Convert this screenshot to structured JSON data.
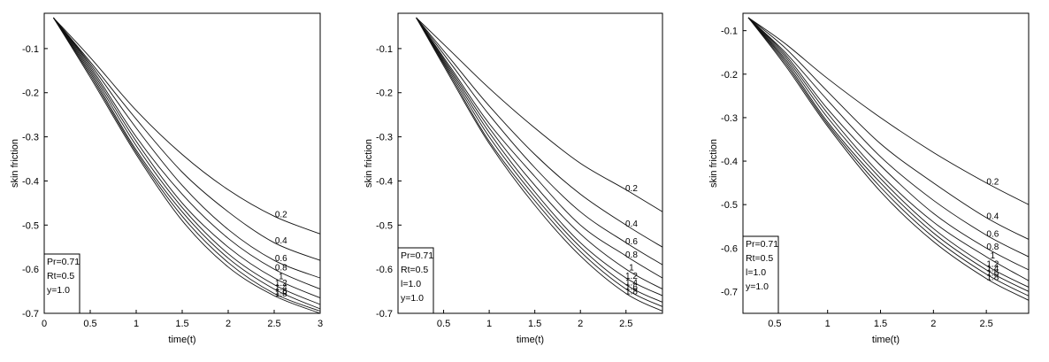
{
  "chart_data": [
    {
      "type": "line",
      "xlabel": "time(t)",
      "ylabel": "skin friction",
      "xlim": [
        0,
        3
      ],
      "ylim": [
        -0.7,
        -0.02
      ],
      "xticks": [
        "0",
        "0.5",
        "1",
        "1.5",
        "2",
        "2.5",
        "3"
      ],
      "yticks": [
        "-0.1",
        "-0.2",
        "-0.3",
        "-0.4",
        "-0.5",
        "-0.6",
        "-0.7"
      ],
      "legend": [
        "Pr=0.71",
        "Rt=0.5",
        "y=1.0"
      ],
      "legend_position": "bottom-left",
      "series": [
        {
          "name": "0.2",
          "x": [
            0.1,
            0.5,
            1.0,
            1.5,
            2.0,
            2.5,
            3.0
          ],
          "y": [
            -0.03,
            -0.12,
            -0.24,
            -0.34,
            -0.42,
            -0.48,
            -0.52
          ]
        },
        {
          "name": "0.4",
          "x": [
            0.1,
            0.5,
            1.0,
            1.5,
            2.0,
            2.5,
            3.0
          ],
          "y": [
            -0.03,
            -0.13,
            -0.26,
            -0.38,
            -0.47,
            -0.54,
            -0.58
          ]
        },
        {
          "name": "0.6",
          "x": [
            0.1,
            0.5,
            1.0,
            1.5,
            2.0,
            2.5,
            3.0
          ],
          "y": [
            -0.03,
            -0.135,
            -0.28,
            -0.41,
            -0.51,
            -0.58,
            -0.62
          ]
        },
        {
          "name": "0.8",
          "x": [
            0.1,
            0.5,
            1.0,
            1.5,
            2.0,
            2.5,
            3.0
          ],
          "y": [
            -0.03,
            -0.14,
            -0.3,
            -0.43,
            -0.53,
            -0.6,
            -0.645
          ]
        },
        {
          "name": "1",
          "x": [
            0.1,
            0.5,
            1.0,
            1.5,
            2.0,
            2.5,
            3.0
          ],
          "y": [
            -0.03,
            -0.145,
            -0.31,
            -0.45,
            -0.55,
            -0.62,
            -0.665
          ]
        },
        {
          "name": "1.2",
          "x": [
            0.1,
            0.5,
            1.0,
            1.5,
            2.0,
            2.5,
            3.0
          ],
          "y": [
            -0.03,
            -0.15,
            -0.32,
            -0.46,
            -0.565,
            -0.635,
            -0.68
          ]
        },
        {
          "name": "1.4",
          "x": [
            0.1,
            0.5,
            1.0,
            1.5,
            2.0,
            2.5,
            3.0
          ],
          "y": [
            -0.03,
            -0.155,
            -0.33,
            -0.47,
            -0.575,
            -0.645,
            -0.69
          ]
        },
        {
          "name": "1.6",
          "x": [
            0.1,
            0.5,
            1.0,
            1.5,
            2.0,
            2.5,
            3.0
          ],
          "y": [
            -0.03,
            -0.16,
            -0.335,
            -0.48,
            -0.585,
            -0.655,
            -0.695
          ]
        },
        {
          "name": "1.8",
          "x": [
            0.1,
            0.5,
            1.0,
            1.5,
            2.0,
            2.5,
            3.0
          ],
          "y": [
            -0.03,
            -0.165,
            -0.34,
            -0.49,
            -0.595,
            -0.66,
            -0.7
          ]
        }
      ]
    },
    {
      "type": "line",
      "xlabel": "time(t)",
      "ylabel": "skin friction",
      "xlim": [
        0,
        2.9
      ],
      "ylim": [
        -0.7,
        -0.02
      ],
      "xticks": [
        "0.5",
        "1",
        "1.5",
        "2",
        "2.5"
      ],
      "yticks": [
        "-0.1",
        "-0.2",
        "-0.3",
        "-0.4",
        "-0.5",
        "-0.6",
        "-0.7"
      ],
      "legend": [
        "Pr=0.71",
        "Rt=0.5",
        "l=1.0",
        "y=1.0"
      ],
      "legend_position": "bottom-left",
      "series": [
        {
          "name": "0.2",
          "x": [
            0.2,
            0.6,
            1.0,
            1.5,
            2.0,
            2.5,
            2.9
          ],
          "y": [
            -0.03,
            -0.11,
            -0.19,
            -0.28,
            -0.36,
            -0.42,
            -0.47
          ]
        },
        {
          "name": "0.4",
          "x": [
            0.2,
            0.6,
            1.0,
            1.5,
            2.0,
            2.5,
            2.9
          ],
          "y": [
            -0.03,
            -0.13,
            -0.23,
            -0.34,
            -0.43,
            -0.5,
            -0.55
          ]
        },
        {
          "name": "0.6",
          "x": [
            0.2,
            0.6,
            1.0,
            1.5,
            2.0,
            2.5,
            2.9
          ],
          "y": [
            -0.03,
            -0.14,
            -0.25,
            -0.37,
            -0.47,
            -0.54,
            -0.59
          ]
        },
        {
          "name": "0.8",
          "x": [
            0.2,
            0.6,
            1.0,
            1.5,
            2.0,
            2.5,
            2.9
          ],
          "y": [
            -0.03,
            -0.15,
            -0.27,
            -0.39,
            -0.5,
            -0.57,
            -0.62
          ]
        },
        {
          "name": "1",
          "x": [
            0.2,
            0.6,
            1.0,
            1.5,
            2.0,
            2.5,
            2.9
          ],
          "y": [
            -0.03,
            -0.155,
            -0.28,
            -0.41,
            -0.52,
            -0.6,
            -0.645
          ]
        },
        {
          "name": "1.2",
          "x": [
            0.2,
            0.6,
            1.0,
            1.5,
            2.0,
            2.5,
            2.9
          ],
          "y": [
            -0.03,
            -0.16,
            -0.29,
            -0.425,
            -0.54,
            -0.62,
            -0.66
          ]
        },
        {
          "name": "1.4",
          "x": [
            0.2,
            0.6,
            1.0,
            1.5,
            2.0,
            2.5,
            2.9
          ],
          "y": [
            -0.03,
            -0.165,
            -0.3,
            -0.435,
            -0.55,
            -0.635,
            -0.675
          ]
        },
        {
          "name": "1.6",
          "x": [
            0.2,
            0.6,
            1.0,
            1.5,
            2.0,
            2.5,
            2.9
          ],
          "y": [
            -0.03,
            -0.17,
            -0.31,
            -0.445,
            -0.56,
            -0.645,
            -0.685
          ]
        },
        {
          "name": "1.8",
          "x": [
            0.2,
            0.6,
            1.0,
            1.5,
            2.0,
            2.5,
            2.9
          ],
          "y": [
            -0.03,
            -0.175,
            -0.315,
            -0.455,
            -0.57,
            -0.655,
            -0.695
          ]
        }
      ]
    },
    {
      "type": "line",
      "xlabel": "time(t)",
      "ylabel": "skin friction",
      "xlim": [
        0.2,
        2.9
      ],
      "ylim": [
        -0.75,
        -0.06
      ],
      "xticks": [
        "0.5",
        "1",
        "1.5",
        "2",
        "2.5"
      ],
      "yticks": [
        "-0.1",
        "-0.2",
        "-0.3",
        "-0.4",
        "-0.5",
        "-0.6",
        "-0.7"
      ],
      "legend": [
        "Pr=0.71",
        "Rt=0.5",
        "l=1.0",
        "y=1.0"
      ],
      "legend_position": "bottom-left",
      "series": [
        {
          "name": "0.2",
          "x": [
            0.25,
            0.6,
            1.0,
            1.5,
            2.0,
            2.5,
            2.9
          ],
          "y": [
            -0.07,
            -0.13,
            -0.21,
            -0.3,
            -0.38,
            -0.45,
            -0.5
          ]
        },
        {
          "name": "0.4",
          "x": [
            0.25,
            0.6,
            1.0,
            1.5,
            2.0,
            2.5,
            2.9
          ],
          "y": [
            -0.07,
            -0.14,
            -0.24,
            -0.36,
            -0.45,
            -0.53,
            -0.58
          ]
        },
        {
          "name": "0.6",
          "x": [
            0.25,
            0.6,
            1.0,
            1.5,
            2.0,
            2.5,
            2.9
          ],
          "y": [
            -0.07,
            -0.15,
            -0.26,
            -0.39,
            -0.49,
            -0.57,
            -0.62
          ]
        },
        {
          "name": "0.8",
          "x": [
            0.25,
            0.6,
            1.0,
            1.5,
            2.0,
            2.5,
            2.9
          ],
          "y": [
            -0.07,
            -0.155,
            -0.28,
            -0.41,
            -0.52,
            -0.6,
            -0.65
          ]
        },
        {
          "name": "1",
          "x": [
            0.25,
            0.6,
            1.0,
            1.5,
            2.0,
            2.5,
            2.9
          ],
          "y": [
            -0.07,
            -0.16,
            -0.29,
            -0.43,
            -0.54,
            -0.62,
            -0.675
          ]
        },
        {
          "name": "1.2",
          "x": [
            0.25,
            0.6,
            1.0,
            1.5,
            2.0,
            2.5,
            2.9
          ],
          "y": [
            -0.07,
            -0.165,
            -0.3,
            -0.44,
            -0.555,
            -0.64,
            -0.69
          ]
        },
        {
          "name": "1.4",
          "x": [
            0.25,
            0.6,
            1.0,
            1.5,
            2.0,
            2.5,
            2.9
          ],
          "y": [
            -0.07,
            -0.17,
            -0.31,
            -0.45,
            -0.565,
            -0.65,
            -0.7
          ]
        },
        {
          "name": "1.6",
          "x": [
            0.25,
            0.6,
            1.0,
            1.5,
            2.0,
            2.5,
            2.9
          ],
          "y": [
            -0.07,
            -0.175,
            -0.315,
            -0.46,
            -0.575,
            -0.66,
            -0.71
          ]
        },
        {
          "name": "1.8",
          "x": [
            0.25,
            0.6,
            1.0,
            1.5,
            2.0,
            2.5,
            2.9
          ],
          "y": [
            -0.07,
            -0.18,
            -0.32,
            -0.47,
            -0.585,
            -0.67,
            -0.72
          ]
        }
      ]
    }
  ]
}
